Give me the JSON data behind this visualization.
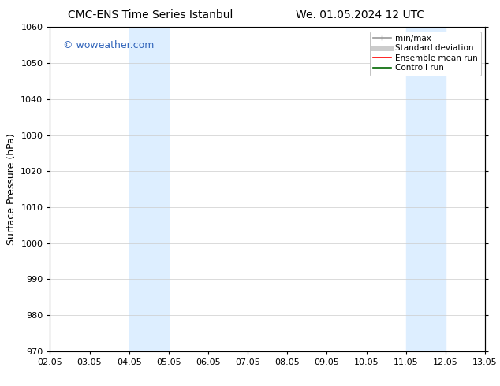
{
  "title_left": "CMC-ENS Time Series Istanbul",
  "title_right": "We. 01.05.2024 12 UTC",
  "ylabel": "Surface Pressure (hPa)",
  "ylim": [
    970,
    1060
  ],
  "yticks": [
    970,
    980,
    990,
    1000,
    1010,
    1020,
    1030,
    1040,
    1050,
    1060
  ],
  "xtick_labels": [
    "02.05",
    "03.05",
    "04.05",
    "05.05",
    "06.05",
    "07.05",
    "08.05",
    "09.05",
    "10.05",
    "11.05",
    "12.05",
    "13.05"
  ],
  "xtick_positions": [
    0,
    1,
    2,
    3,
    4,
    5,
    6,
    7,
    8,
    9,
    10,
    11
  ],
  "xlim": [
    0,
    11
  ],
  "shaded_regions": [
    {
      "x_start": 2,
      "x_end": 3,
      "color": "#ddeeff"
    },
    {
      "x_start": 9,
      "x_end": 10,
      "color": "#ddeeff"
    }
  ],
  "watermark_text": "© woweather.com",
  "watermark_color": "#3366bb",
  "bg_color": "#ffffff",
  "grid_color": "#cccccc",
  "title_fontsize": 10,
  "tick_fontsize": 8,
  "ylabel_fontsize": 9,
  "legend_fontsize": 7.5,
  "legend_colors": {
    "minmax": "#999999",
    "std": "#cccccc",
    "ensemble": "#ff0000",
    "control": "#006600"
  }
}
